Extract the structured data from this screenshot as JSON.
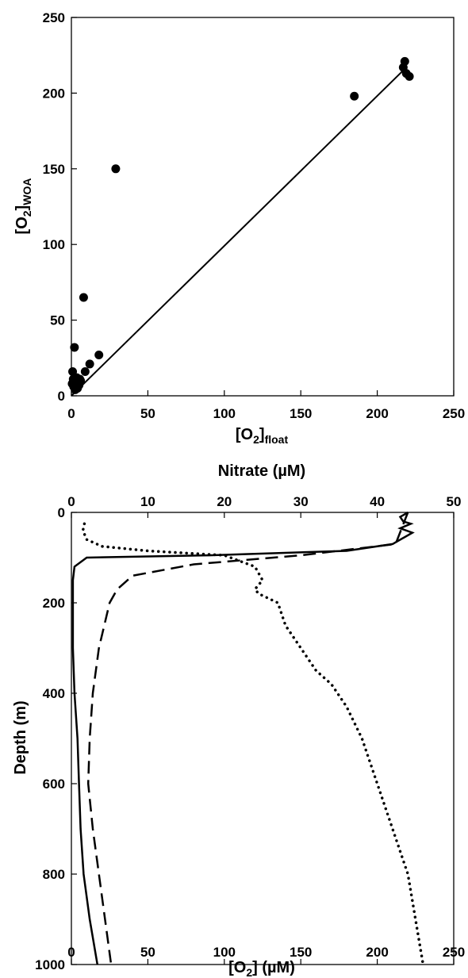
{
  "chart_data": [
    {
      "type": "scatter",
      "xlabel": {
        "main": "[O",
        "sub": "2",
        "close": "]",
        "subscript": "float"
      },
      "ylabel": {
        "main": "[O",
        "sub": "2",
        "close": "]",
        "subscript": "WOA"
      },
      "xlim": [
        0,
        250
      ],
      "ylim": [
        0,
        250
      ],
      "xticks": [
        "0",
        "50",
        "100",
        "150",
        "200",
        "250"
      ],
      "yticks": [
        "0",
        "50",
        "100",
        "150",
        "200",
        "250"
      ],
      "grid": false,
      "points": [
        {
          "x": 0.5,
          "y": 8
        },
        {
          "x": 0.8,
          "y": 16
        },
        {
          "x": 1.2,
          "y": 11
        },
        {
          "x": 1.5,
          "y": 6
        },
        {
          "x": 2,
          "y": 10
        },
        {
          "x": 2.5,
          "y": 4
        },
        {
          "x": 3,
          "y": 8
        },
        {
          "x": 3.5,
          "y": 12
        },
        {
          "x": 4,
          "y": 5
        },
        {
          "x": 4.5,
          "y": 9
        },
        {
          "x": 5,
          "y": 7
        },
        {
          "x": 5.5,
          "y": 11
        },
        {
          "x": 6,
          "y": 10
        },
        {
          "x": 2,
          "y": 32
        },
        {
          "x": 8,
          "y": 65
        },
        {
          "x": 9,
          "y": 16
        },
        {
          "x": 12,
          "y": 21
        },
        {
          "x": 18,
          "y": 27
        },
        {
          "x": 29,
          "y": 150
        },
        {
          "x": 185,
          "y": 198
        },
        {
          "x": 218,
          "y": 221
        },
        {
          "x": 219,
          "y": 213
        },
        {
          "x": 217,
          "y": 217
        },
        {
          "x": 221,
          "y": 211
        }
      ],
      "fit_line": {
        "x": [
          0,
          218
        ],
        "y": [
          0,
          216
        ]
      }
    },
    {
      "type": "line",
      "xlabel": {
        "main": "[O",
        "sub": "2",
        "close": "] (µM)"
      },
      "x2label": "Nitrate (µM)",
      "ylabel": "Depth (m)",
      "xlim": [
        0,
        250
      ],
      "x2lim": [
        0,
        50
      ],
      "ylim": [
        0,
        1000
      ],
      "y_inverted": true,
      "xticks": [
        "0",
        "50",
        "100",
        "150",
        "200",
        "250"
      ],
      "x2ticks": [
        "0",
        "10",
        "20",
        "30",
        "40",
        "50"
      ],
      "yticks": [
        "0",
        "200",
        "400",
        "600",
        "800",
        "1000"
      ],
      "grid": false,
      "series": [
        {
          "style": "solid",
          "axis": "O2",
          "points": [
            [
              220,
              0
            ],
            [
              215,
              10
            ],
            [
              217,
              20
            ],
            [
              222,
              25
            ],
            [
              215,
              35
            ],
            [
              223,
              45
            ],
            [
              210,
              70
            ],
            [
              180,
              85
            ],
            [
              90,
              95
            ],
            [
              10,
              100
            ],
            [
              2,
              120
            ],
            [
              1,
              150
            ],
            [
              1,
              200
            ],
            [
              1,
              300
            ],
            [
              2,
              400
            ],
            [
              4,
              500
            ],
            [
              5,
              600
            ],
            [
              6,
              700
            ],
            [
              8,
              800
            ],
            [
              12,
              900
            ],
            [
              17,
              1000
            ]
          ]
        },
        {
          "style": "dashed",
          "axis": "O2",
          "points": [
            [
              220,
              0
            ],
            [
              212,
              70
            ],
            [
              150,
              95
            ],
            [
              80,
              115
            ],
            [
              40,
              140
            ],
            [
              30,
              170
            ],
            [
              25,
              200
            ],
            [
              18,
              300
            ],
            [
              14,
              400
            ],
            [
              12,
              500
            ],
            [
              11,
              600
            ],
            [
              14,
              700
            ],
            [
              18,
              800
            ],
            [
              22,
              900
            ],
            [
              26,
              1000
            ]
          ]
        },
        {
          "style": "dotted",
          "axis": "Nitrate",
          "points": [
            [
              1.7,
              25
            ],
            [
              1.5,
              40
            ],
            [
              2,
              60
            ],
            [
              4,
              75
            ],
            [
              10,
              85
            ],
            [
              20,
              95
            ],
            [
              24,
              120
            ],
            [
              25,
              150
            ],
            [
              24,
              170
            ],
            [
              24.5,
              180
            ],
            [
              27,
              200
            ],
            [
              28,
              250
            ],
            [
              30,
              300
            ],
            [
              32,
              350
            ],
            [
              34,
              380
            ],
            [
              36,
              430
            ],
            [
              38,
              500
            ],
            [
              40,
              600
            ],
            [
              42,
              700
            ],
            [
              44,
              800
            ],
            [
              45,
              900
            ],
            [
              46,
              1000
            ]
          ]
        }
      ]
    }
  ]
}
